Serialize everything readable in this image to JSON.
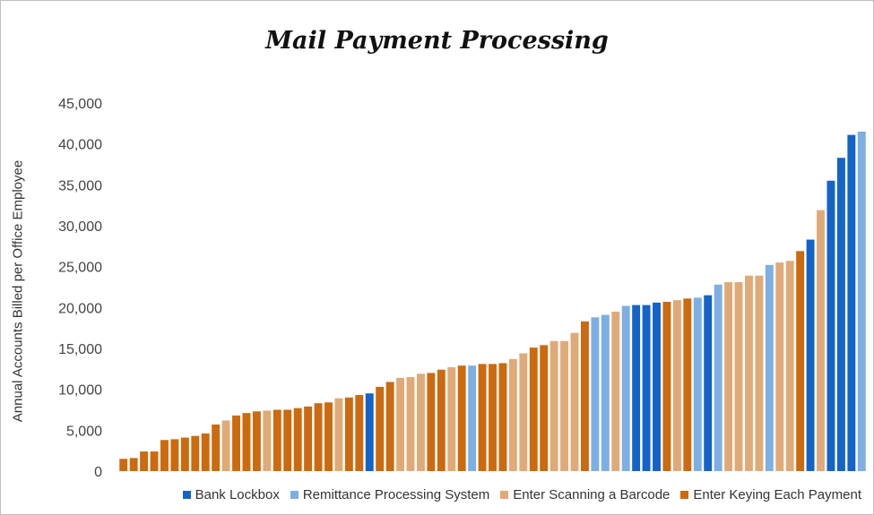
{
  "chart_data": {
    "type": "bar",
    "title": "Mail Payment Processing",
    "xlabel": "",
    "ylabel": "Annual Accounts Billed per Office Employee",
    "ylim": [
      0,
      45000
    ],
    "yticks": [
      "0",
      "5,000",
      "10,000",
      "15,000",
      "20,000",
      "25,000",
      "30,000",
      "35,000",
      "40,000",
      "45,000"
    ],
    "grid": false,
    "legend_position": "bottom-right",
    "series": [
      {
        "name": "Bank Lockbox",
        "color": "#1464c8"
      },
      {
        "name": "Remittance Processing System",
        "color": "#7dafe3"
      },
      {
        "name": "Enter Scanning a Barcode",
        "color": "#e0aa78"
      },
      {
        "name": "Enter Keying Each Payment",
        "color": "#cc6a0f"
      }
    ],
    "bars": [
      {
        "v": 1500,
        "s": 3
      },
      {
        "v": 1600,
        "s": 3
      },
      {
        "v": 2400,
        "s": 3
      },
      {
        "v": 2400,
        "s": 3
      },
      {
        "v": 3800,
        "s": 3
      },
      {
        "v": 3900,
        "s": 3
      },
      {
        "v": 4100,
        "s": 3
      },
      {
        "v": 4300,
        "s": 3
      },
      {
        "v": 4600,
        "s": 3
      },
      {
        "v": 5700,
        "s": 3
      },
      {
        "v": 6200,
        "s": 2
      },
      {
        "v": 6800,
        "s": 3
      },
      {
        "v": 7100,
        "s": 3
      },
      {
        "v": 7300,
        "s": 3
      },
      {
        "v": 7400,
        "s": 2
      },
      {
        "v": 7500,
        "s": 3
      },
      {
        "v": 7500,
        "s": 3
      },
      {
        "v": 7700,
        "s": 3
      },
      {
        "v": 7900,
        "s": 3
      },
      {
        "v": 8300,
        "s": 3
      },
      {
        "v": 8400,
        "s": 3
      },
      {
        "v": 8900,
        "s": 2
      },
      {
        "v": 9000,
        "s": 3
      },
      {
        "v": 9300,
        "s": 3
      },
      {
        "v": 9500,
        "s": 0
      },
      {
        "v": 10300,
        "s": 3
      },
      {
        "v": 10900,
        "s": 3
      },
      {
        "v": 11400,
        "s": 2
      },
      {
        "v": 11500,
        "s": 2
      },
      {
        "v": 11900,
        "s": 2
      },
      {
        "v": 12000,
        "s": 3
      },
      {
        "v": 12400,
        "s": 3
      },
      {
        "v": 12700,
        "s": 2
      },
      {
        "v": 12900,
        "s": 3
      },
      {
        "v": 12900,
        "s": 1
      },
      {
        "v": 13100,
        "s": 3
      },
      {
        "v": 13100,
        "s": 3
      },
      {
        "v": 13200,
        "s": 3
      },
      {
        "v": 13700,
        "s": 2
      },
      {
        "v": 14400,
        "s": 2
      },
      {
        "v": 15100,
        "s": 3
      },
      {
        "v": 15400,
        "s": 3
      },
      {
        "v": 15900,
        "s": 2
      },
      {
        "v": 15900,
        "s": 2
      },
      {
        "v": 16900,
        "s": 2
      },
      {
        "v": 18300,
        "s": 3
      },
      {
        "v": 18800,
        "s": 1
      },
      {
        "v": 19100,
        "s": 1
      },
      {
        "v": 19500,
        "s": 2
      },
      {
        "v": 20200,
        "s": 1
      },
      {
        "v": 20300,
        "s": 0
      },
      {
        "v": 20300,
        "s": 0
      },
      {
        "v": 20600,
        "s": 0
      },
      {
        "v": 20700,
        "s": 3
      },
      {
        "v": 20900,
        "s": 2
      },
      {
        "v": 21100,
        "s": 3
      },
      {
        "v": 21200,
        "s": 1
      },
      {
        "v": 21500,
        "s": 0
      },
      {
        "v": 22800,
        "s": 1
      },
      {
        "v": 23100,
        "s": 2
      },
      {
        "v": 23100,
        "s": 2
      },
      {
        "v": 23900,
        "s": 2
      },
      {
        "v": 23900,
        "s": 2
      },
      {
        "v": 25200,
        "s": 1
      },
      {
        "v": 25500,
        "s": 2
      },
      {
        "v": 25700,
        "s": 2
      },
      {
        "v": 26900,
        "s": 3
      },
      {
        "v": 28300,
        "s": 0
      },
      {
        "v": 31900,
        "s": 2
      },
      {
        "v": 35500,
        "s": 0
      },
      {
        "v": 38300,
        "s": 0
      },
      {
        "v": 41100,
        "s": 0
      },
      {
        "v": 41500,
        "s": 1
      }
    ]
  }
}
